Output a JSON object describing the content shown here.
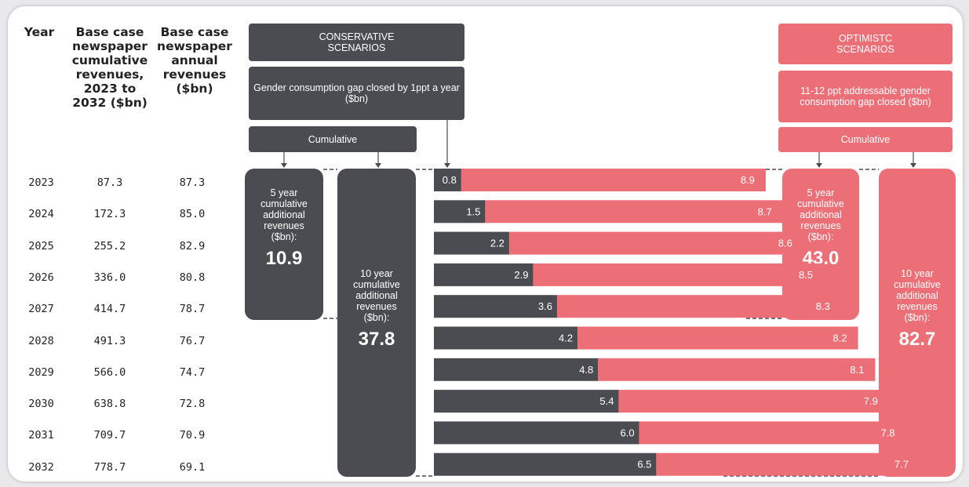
{
  "headers": {
    "year": "Year",
    "cumulative": "Base case newspaper cumulative revenues, 2023 to 2032 ($bn)",
    "annual": "Base case newspaper annual revenues ($bn)"
  },
  "table": {
    "years": [
      "2023",
      "2024",
      "2025",
      "2026",
      "2027",
      "2028",
      "2029",
      "2030",
      "2031",
      "2032"
    ],
    "cumulative": [
      "87.3",
      "172.3",
      "255.2",
      "336.0",
      "414.7",
      "491.3",
      "566.0",
      "638.8",
      "709.7",
      "778.7"
    ],
    "annual": [
      "87.3",
      "85.0",
      "82.9",
      "80.8",
      "78.7",
      "76.7",
      "74.7",
      "72.8",
      "70.9",
      "69.1"
    ]
  },
  "conservative": {
    "title": "CONSERVATIVE SCENARIOS",
    "desc": "Gender consumption gap closed by 1ppt a year ($bn)",
    "cumulative_label": "Cumulative",
    "five_year_label": "5 year cumulative additional revenues ($bn):",
    "five_year_value": "10.9",
    "ten_year_label": "10 year cumulative additional revenues ($bn):",
    "ten_year_value": "37.8"
  },
  "optimistic": {
    "title": "OPTIMISTC SCENARIOS",
    "desc": "11-12 ppt addressable gender consumption gap closed ($bn)",
    "cumulative_label": "Cumulative",
    "five_year_label": "5 year cumulative additional revenues ($bn):",
    "five_year_value": "43.0",
    "ten_year_label": "10 year cumulative additional revenues ($bn):",
    "ten_year_value": "82.7"
  },
  "colors": {
    "conservative": "#4a4c52",
    "optimistic": "#ec6f77"
  },
  "chart_data": {
    "type": "bar",
    "orientation": "horizontal",
    "stacked": true,
    "categories": [
      "2023",
      "2024",
      "2025",
      "2026",
      "2027",
      "2028",
      "2029",
      "2030",
      "2031",
      "2032"
    ],
    "series": [
      {
        "name": "Gender consumption gap closed by 1ppt a year ($bn)",
        "values": [
          0.8,
          1.5,
          2.2,
          2.9,
          3.6,
          4.2,
          4.8,
          5.4,
          6.0,
          6.5
        ]
      },
      {
        "name": "11-12 ppt addressable gender consumption gap closed ($bn)",
        "values": [
          8.9,
          8.7,
          8.6,
          8.5,
          8.3,
          8.2,
          8.1,
          7.9,
          7.8,
          7.7
        ]
      }
    ]
  }
}
